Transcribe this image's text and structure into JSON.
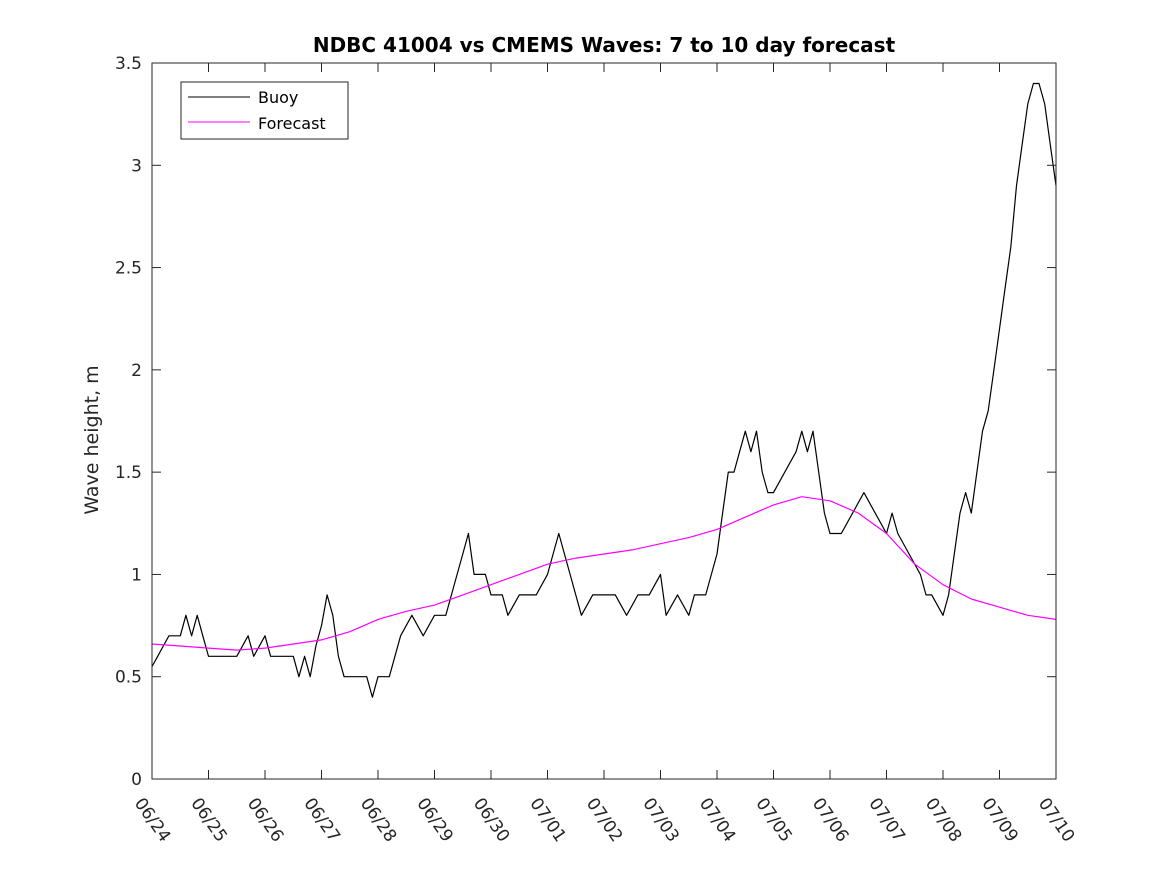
{
  "chart_data": {
    "type": "line",
    "title": "NDBC 41004 vs CMEMS Waves: 7 to 10 day forecast",
    "xlabel": "",
    "ylabel": "Wave height, m",
    "ylim": [
      0,
      3.5
    ],
    "yticks": [
      "0",
      "0.5",
      "1",
      "1.5",
      "2",
      "2.5",
      "3",
      "3.5"
    ],
    "xlim_days": [
      0,
      16
    ],
    "xticks": [
      "06/24",
      "06/25",
      "06/26",
      "06/27",
      "06/28",
      "06/29",
      "06/30",
      "07/01",
      "07/02",
      "07/03",
      "07/04",
      "07/05",
      "07/06",
      "07/07",
      "07/08",
      "07/09",
      "07/10"
    ],
    "grid": false,
    "legend_position": "top-left",
    "legend": [
      {
        "label": "Buoy",
        "color": "#000000"
      },
      {
        "label": "Forecast",
        "color": "#ff00ff"
      }
    ],
    "series": [
      {
        "name": "Buoy",
        "color": "#000000",
        "points": [
          [
            0.0,
            0.55
          ],
          [
            0.1,
            0.6
          ],
          [
            0.2,
            0.65
          ],
          [
            0.3,
            0.7
          ],
          [
            0.5,
            0.7
          ],
          [
            0.6,
            0.8
          ],
          [
            0.7,
            0.7
          ],
          [
            0.8,
            0.8
          ],
          [
            0.9,
            0.7
          ],
          [
            1.0,
            0.6
          ],
          [
            1.5,
            0.6
          ],
          [
            1.7,
            0.7
          ],
          [
            1.8,
            0.6
          ],
          [
            2.0,
            0.7
          ],
          [
            2.1,
            0.6
          ],
          [
            2.3,
            0.6
          ],
          [
            2.5,
            0.6
          ],
          [
            2.6,
            0.5
          ],
          [
            2.7,
            0.6
          ],
          [
            2.8,
            0.5
          ],
          [
            2.9,
            0.65
          ],
          [
            3.0,
            0.75
          ],
          [
            3.1,
            0.9
          ],
          [
            3.2,
            0.8
          ],
          [
            3.3,
            0.6
          ],
          [
            3.4,
            0.5
          ],
          [
            3.6,
            0.5
          ],
          [
            3.8,
            0.5
          ],
          [
            3.9,
            0.4
          ],
          [
            4.0,
            0.5
          ],
          [
            4.2,
            0.5
          ],
          [
            4.4,
            0.7
          ],
          [
            4.6,
            0.8
          ],
          [
            4.8,
            0.7
          ],
          [
            5.0,
            0.8
          ],
          [
            5.2,
            0.8
          ],
          [
            5.4,
            1.0
          ],
          [
            5.5,
            1.1
          ],
          [
            5.6,
            1.2
          ],
          [
            5.7,
            1.0
          ],
          [
            5.9,
            1.0
          ],
          [
            6.0,
            0.9
          ],
          [
            6.2,
            0.9
          ],
          [
            6.3,
            0.8
          ],
          [
            6.5,
            0.9
          ],
          [
            6.6,
            0.9
          ],
          [
            6.8,
            0.9
          ],
          [
            7.0,
            1.0
          ],
          [
            7.1,
            1.1
          ],
          [
            7.2,
            1.2
          ],
          [
            7.4,
            1.0
          ],
          [
            7.6,
            0.8
          ],
          [
            7.8,
            0.9
          ],
          [
            8.0,
            0.9
          ],
          [
            8.2,
            0.9
          ],
          [
            8.4,
            0.8
          ],
          [
            8.6,
            0.9
          ],
          [
            8.8,
            0.9
          ],
          [
            9.0,
            1.0
          ],
          [
            9.1,
            0.8
          ],
          [
            9.3,
            0.9
          ],
          [
            9.5,
            0.8
          ],
          [
            9.6,
            0.9
          ],
          [
            9.8,
            0.9
          ],
          [
            10.0,
            1.1
          ],
          [
            10.1,
            1.3
          ],
          [
            10.2,
            1.5
          ],
          [
            10.3,
            1.5
          ],
          [
            10.4,
            1.6
          ],
          [
            10.5,
            1.7
          ],
          [
            10.6,
            1.6
          ],
          [
            10.7,
            1.7
          ],
          [
            10.8,
            1.5
          ],
          [
            10.9,
            1.4
          ],
          [
            11.0,
            1.4
          ],
          [
            11.2,
            1.5
          ],
          [
            11.4,
            1.6
          ],
          [
            11.5,
            1.7
          ],
          [
            11.6,
            1.6
          ],
          [
            11.7,
            1.7
          ],
          [
            11.8,
            1.5
          ],
          [
            11.9,
            1.3
          ],
          [
            12.0,
            1.2
          ],
          [
            12.2,
            1.2
          ],
          [
            12.4,
            1.3
          ],
          [
            12.6,
            1.4
          ],
          [
            12.8,
            1.3
          ],
          [
            13.0,
            1.2
          ],
          [
            13.1,
            1.3
          ],
          [
            13.2,
            1.2
          ],
          [
            13.4,
            1.1
          ],
          [
            13.6,
            1.0
          ],
          [
            13.7,
            0.9
          ],
          [
            13.8,
            0.9
          ],
          [
            14.0,
            0.8
          ],
          [
            14.1,
            0.9
          ],
          [
            14.2,
            1.1
          ],
          [
            14.3,
            1.3
          ],
          [
            14.4,
            1.4
          ],
          [
            14.5,
            1.3
          ],
          [
            14.6,
            1.5
          ],
          [
            14.7,
            1.7
          ],
          [
            14.8,
            1.8
          ],
          [
            14.9,
            2.0
          ],
          [
            15.0,
            2.2
          ],
          [
            15.1,
            2.4
          ],
          [
            15.2,
            2.6
          ],
          [
            15.3,
            2.9
          ],
          [
            15.4,
            3.1
          ],
          [
            15.5,
            3.3
          ],
          [
            15.6,
            3.4
          ],
          [
            15.7,
            3.4
          ],
          [
            15.8,
            3.3
          ],
          [
            15.9,
            3.1
          ],
          [
            16.0,
            2.9
          ]
        ]
      },
      {
        "name": "Forecast",
        "color": "#ff00ff",
        "points": [
          [
            0.0,
            0.66
          ],
          [
            0.5,
            0.65
          ],
          [
            1.0,
            0.64
          ],
          [
            1.5,
            0.63
          ],
          [
            2.0,
            0.64
          ],
          [
            2.5,
            0.66
          ],
          [
            3.0,
            0.68
          ],
          [
            3.5,
            0.72
          ],
          [
            4.0,
            0.78
          ],
          [
            4.5,
            0.82
          ],
          [
            5.0,
            0.85
          ],
          [
            5.5,
            0.9
          ],
          [
            6.0,
            0.95
          ],
          [
            6.5,
            1.0
          ],
          [
            7.0,
            1.05
          ],
          [
            7.5,
            1.08
          ],
          [
            8.0,
            1.1
          ],
          [
            8.5,
            1.12
          ],
          [
            9.0,
            1.15
          ],
          [
            9.5,
            1.18
          ],
          [
            10.0,
            1.22
          ],
          [
            10.5,
            1.28
          ],
          [
            11.0,
            1.34
          ],
          [
            11.5,
            1.38
          ],
          [
            12.0,
            1.36
          ],
          [
            12.5,
            1.3
          ],
          [
            13.0,
            1.2
          ],
          [
            13.5,
            1.05
          ],
          [
            14.0,
            0.95
          ],
          [
            14.5,
            0.88
          ],
          [
            15.0,
            0.84
          ],
          [
            15.5,
            0.8
          ],
          [
            16.0,
            0.78
          ]
        ]
      }
    ]
  }
}
